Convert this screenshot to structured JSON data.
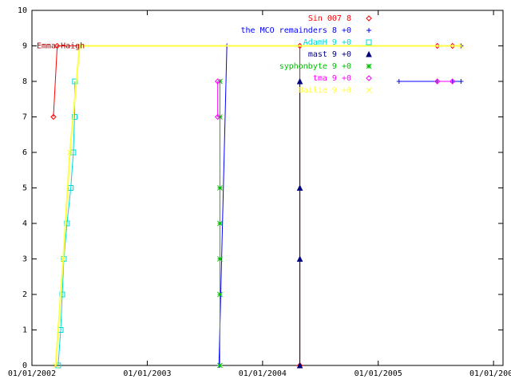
{
  "chart_data": {
    "type": "line",
    "xlim": [
      "2002-01-01",
      "2006-01-31"
    ],
    "xticks": [
      {
        "value": "2002-01-01",
        "label": "01/01/2002"
      },
      {
        "value": "2003-01-01",
        "label": "01/01/2003"
      },
      {
        "value": "2004-01-01",
        "label": "01/01/2004"
      },
      {
        "value": "2005-01-01",
        "label": "01/01/2005"
      },
      {
        "value": "2006-01-01",
        "label": "01/01/2006"
      }
    ],
    "ylim": [
      0,
      10
    ],
    "yticks": [
      0,
      1,
      2,
      3,
      4,
      5,
      6,
      7,
      8,
      9,
      10
    ],
    "annotation": "Emma Haigh",
    "series": [
      {
        "name": "Sin 007 8",
        "color": "#ff0000",
        "marker": "diamond",
        "x": [
          "2002-03-10",
          "2002-03-22",
          "2005-07-07",
          "2005-08-24",
          "2004-04-28",
          "2004-04-28",
          "2004-04-28"
        ],
        "values": [
          7,
          9,
          9,
          9,
          null,
          0,
          9
        ]
      },
      {
        "name": "the MCO remainders 8 +0",
        "color": "#0000ff",
        "marker": "plus",
        "x": [
          "2003-08-16",
          "2003-09-10",
          "2005-09-20",
          "2005-03-08",
          "2005-03-08",
          "2005-07-07",
          "2005-08-24",
          "2005-08-24",
          "2005-09-20"
        ],
        "values": [
          0,
          9,
          9,
          null,
          8,
          8,
          null,
          8,
          8
        ]
      },
      {
        "name": "AdamH 9 +0",
        "color": "#00d8d8",
        "marker": "square",
        "x": [
          "2002-03-25",
          "2002-04-02",
          "2002-04-07",
          "2002-04-12",
          "2002-04-22",
          "2002-05-04",
          "2002-05-12",
          "2002-05-16",
          "2002-05-17"
        ],
        "values": [
          0,
          1,
          2,
          3,
          4,
          5,
          6,
          7,
          8
        ]
      },
      {
        "name": "mast 9 +0",
        "color": "#000080",
        "marker": "triangle",
        "x": [
          "2004-04-28",
          "2004-04-28",
          "2004-04-28",
          "2004-04-28"
        ],
        "values": [
          0,
          3,
          5,
          8
        ]
      },
      {
        "name": "syphonbyte 9 +0",
        "color": "#00c000",
        "marker": "star",
        "x": [
          "2003-08-19",
          "2003-08-19",
          "2003-08-19",
          "2003-08-19",
          "2003-08-19",
          "2003-08-19",
          "2003-08-19"
        ],
        "values": [
          0,
          2,
          3,
          4,
          5,
          7,
          8
        ]
      },
      {
        "name": "tma 9 +0",
        "color": "#ff00ff",
        "marker": "diamond",
        "x": [
          "2003-08-12",
          "2003-08-12",
          "2003-08-12",
          "2005-07-07",
          "2005-08-24"
        ],
        "values": [
          7,
          8,
          null,
          8,
          8
        ]
      },
      {
        "name": "Bailie 9 +0",
        "color": "#ffff40",
        "marker": "cross",
        "x": [
          "2002-03-17",
          "2002-04-10",
          "2002-05-01",
          "2002-06-01",
          "2005-09-20"
        ],
        "values": [
          0,
          3,
          6,
          9,
          9
        ]
      }
    ]
  }
}
